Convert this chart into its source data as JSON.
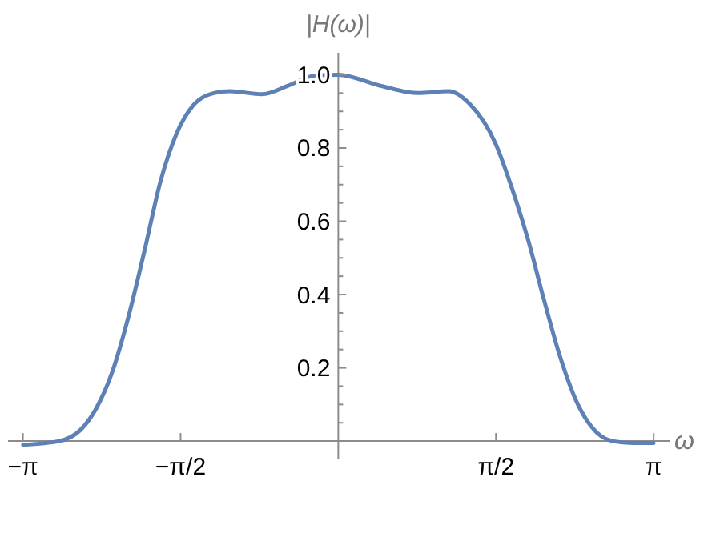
{
  "chart_data": {
    "type": "line",
    "ylabel": "|H(ω)|",
    "xlabel": "ω",
    "xlim": [
      -3.29,
      3.3
    ],
    "ylim": [
      -0.05,
      1.06
    ],
    "xticks": [
      {
        "value": -3.1416,
        "label": "−π"
      },
      {
        "value": -1.5708,
        "label": "−π/2"
      },
      {
        "value": 1.5708,
        "label": "π/2"
      },
      {
        "value": 3.1416,
        "label": "π"
      }
    ],
    "yticks": [
      {
        "value": 0.05,
        "label": null
      },
      {
        "value": 0.1,
        "label": null
      },
      {
        "value": 0.15,
        "label": null
      },
      0.2,
      {
        "value": 0.25,
        "label": null
      },
      {
        "value": 0.3,
        "label": null
      },
      {
        "value": 0.35,
        "label": null
      },
      0.4,
      {
        "value": 0.45,
        "label": null
      },
      {
        "value": 0.5,
        "label": null
      },
      {
        "value": 0.55,
        "label": null
      },
      0.6,
      {
        "value": 0.65,
        "label": null
      },
      {
        "value": 0.7,
        "label": null
      },
      {
        "value": 0.75,
        "label": null
      },
      0.8,
      {
        "value": 0.85,
        "label": null
      },
      {
        "value": 0.9,
        "label": null
      },
      {
        "value": 0.95,
        "label": null
      },
      {
        "value": 1.0,
        "label": "1.0"
      }
    ],
    "marker": "none",
    "line_style": "solid",
    "grid": false,
    "series": [
      {
        "color": "#5e81b5",
        "x": [
          -3.14,
          -2.78,
          -2.57,
          -2.41,
          -2.25,
          -2.09,
          -1.93,
          -1.77,
          -1.61,
          -1.45,
          -1.24,
          -1.08,
          -0.76,
          -0.5,
          -0.23,
          0,
          0.42,
          0.79,
          1.1,
          1.31,
          1.57,
          1.73,
          1.89,
          2.05,
          2.21,
          2.37,
          2.52,
          2.73,
          2.94,
          3.14
        ],
        "values": [
          -0.01,
          0,
          0.03,
          0.09,
          0.19,
          0.34,
          0.52,
          0.71,
          0.84,
          0.915,
          0.95,
          0.955,
          0.947,
          0.97,
          0.998,
          1.0,
          0.97,
          0.95,
          0.955,
          0.92,
          0.81,
          0.69,
          0.55,
          0.385,
          0.23,
          0.11,
          0.04,
          0,
          -0.005,
          -0.005
        ]
      }
    ]
  }
}
